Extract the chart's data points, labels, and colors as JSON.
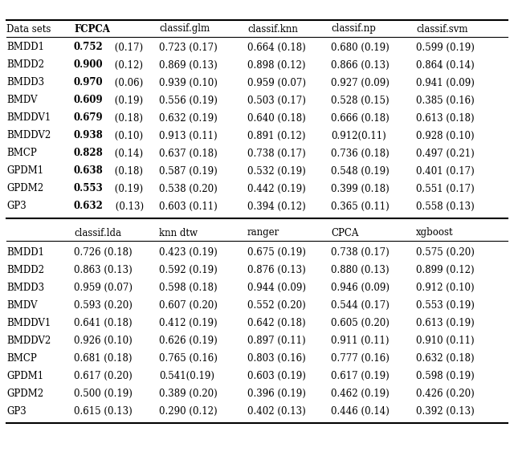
{
  "top_headers": [
    "Data sets",
    "FCPCA",
    "classif.glm",
    "classif.knn",
    "classif.np",
    "classif.svm"
  ],
  "bottom_headers": [
    "",
    "classif.lda",
    "knn dtw",
    "ranger",
    "CPCA",
    "xgboost"
  ],
  "datasets": [
    "BMDD1",
    "BMDD2",
    "BMDD3",
    "BMDV",
    "BMDDV1",
    "BMDDV2",
    "BMCP",
    "GPDM1",
    "GPDM2",
    "GP3"
  ],
  "top_data": [
    [
      "0.752 (0.17)",
      "0.723 (0.17)",
      "0.664 (0.18)",
      "0.680 (0.19)",
      "0.599 (0.19)"
    ],
    [
      "0.900 (0.12)",
      "0.869 (0.13)",
      "0.898 (0.12)",
      "0.866 (0.13)",
      "0.864 (0.14)"
    ],
    [
      "0.970 (0.06)",
      "0.939 (0.10)",
      "0.959 (0.07)",
      "0.927 (0.09)",
      "0.941 (0.09)"
    ],
    [
      "0.609 (0.19)",
      "0.556 (0.19)",
      "0.503 (0.17)",
      "0.528 (0.15)",
      "0.385 (0.16)"
    ],
    [
      "0.679 (0.18)",
      "0.632 (0.19)",
      "0.640 (0.18)",
      "0.666 (0.18)",
      "0.613 (0.18)"
    ],
    [
      "0.938 (0.10)",
      "0.913 (0.11)",
      "0.891 (0.12)",
      "0.912(0.11)",
      "0.928 (0.10)"
    ],
    [
      "0.828 (0.14)",
      "0.637 (0.18)",
      "0.738 (0.17)",
      "0.736 (0.18)",
      "0.497 (0.21)"
    ],
    [
      "0.638 (0.18)",
      "0.587 (0.19)",
      "0.532 (0.19)",
      "0.548 (0.19)",
      "0.401 (0.17)"
    ],
    [
      "0.553 (0.19)",
      "0.538 (0.20)",
      "0.442 (0.19)",
      "0.399 (0.18)",
      "0.551 (0.17)"
    ],
    [
      "0.632 (0.13)",
      "0.603 (0.11)",
      "0.394 (0.12)",
      "0.365 (0.11)",
      "0.558 (0.13)"
    ]
  ],
  "bottom_data": [
    [
      "0.726 (0.18)",
      "0.423 (0.19)",
      "0.675 (0.19)",
      "0.738 (0.17)",
      "0.575 (0.20)"
    ],
    [
      "0.863 (0.13)",
      "0.592 (0.19)",
      "0.876 (0.13)",
      "0.880 (0.13)",
      "0.899 (0.12)"
    ],
    [
      "0.959 (0.07)",
      "0.598 (0.18)",
      "0.944 (0.09)",
      "0.946 (0.09)",
      "0.912 (0.10)"
    ],
    [
      "0.593 (0.20)",
      "0.607 (0.20)",
      "0.552 (0.20)",
      "0.544 (0.17)",
      "0.553 (0.19)"
    ],
    [
      "0.641 (0.18)",
      "0.412 (0.19)",
      "0.642 (0.18)",
      "0.605 (0.20)",
      "0.613 (0.19)"
    ],
    [
      "0.926 (0.10)",
      "0.626 (0.19)",
      "0.897 (0.11)",
      "0.911 (0.11)",
      "0.910 (0.11)"
    ],
    [
      "0.681 (0.18)",
      "0.765 (0.16)",
      "0.803 (0.16)",
      "0.777 (0.16)",
      "0.632 (0.18)"
    ],
    [
      "0.617 (0.20)",
      "0.541(0.19)",
      "0.603 (0.19)",
      "0.617 (0.19)",
      "0.598 (0.19)"
    ],
    [
      "0.500 (0.19)",
      "0.389 (0.20)",
      "0.396 (0.19)",
      "0.462 (0.19)",
      "0.426 (0.20)"
    ],
    [
      "0.615 (0.13)",
      "0.290 (0.12)",
      "0.402 (0.13)",
      "0.446 (0.14)",
      "0.392 (0.13)"
    ]
  ],
  "bg_color": "#ffffff",
  "text_color": "#000000",
  "font_size": 8.5,
  "header_font_size": 8.5
}
